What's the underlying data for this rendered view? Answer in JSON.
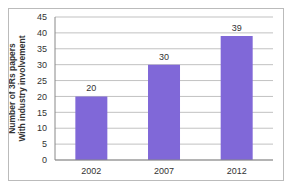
{
  "chart_data": {
    "type": "bar",
    "y_label": [
      "Number of 3Rs papers",
      "With industry involvement"
    ],
    "categories": [
      "2002",
      "2007",
      "2012"
    ],
    "values": [
      20,
      30,
      39
    ],
    "color": "#8068d8",
    "ylim": [
      0,
      45
    ],
    "yticks": [
      0,
      5,
      10,
      15,
      20,
      25,
      30,
      35,
      40,
      45
    ],
    "grid": true,
    "data_labels": true
  }
}
